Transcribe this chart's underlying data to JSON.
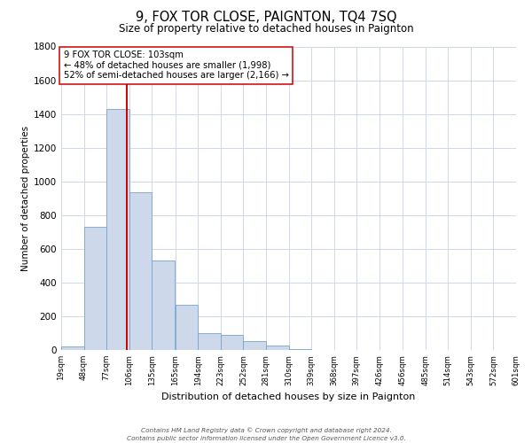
{
  "title": "9, FOX TOR CLOSE, PAIGNTON, TQ4 7SQ",
  "subtitle": "Size of property relative to detached houses in Paignton",
  "xlabel": "Distribution of detached houses by size in Paignton",
  "ylabel": "Number of detached properties",
  "bins": [
    19,
    48,
    77,
    106,
    135,
    165,
    194,
    223,
    252,
    281,
    310,
    339,
    368,
    397,
    426,
    456,
    485,
    514,
    543,
    572,
    601
  ],
  "counts": [
    20,
    730,
    1430,
    935,
    530,
    270,
    100,
    90,
    50,
    25,
    5,
    2,
    1,
    0,
    0,
    0,
    0,
    0,
    0,
    0
  ],
  "bar_facecolor": "#cdd9ea",
  "bar_edgecolor": "#7aa3c8",
  "property_value": 103,
  "vline_color": "#cc0000",
  "annotation_line1": "9 FOX TOR CLOSE: 103sqm",
  "annotation_line2": "← 48% of detached houses are smaller (1,998)",
  "annotation_line3": "52% of semi-detached houses are larger (2,166) →",
  "annotation_box_edgecolor": "#cc0000",
  "ylim": [
    0,
    1800
  ],
  "yticks": [
    0,
    200,
    400,
    600,
    800,
    1000,
    1200,
    1400,
    1600,
    1800
  ],
  "tick_labels": [
    "19sqm",
    "48sqm",
    "77sqm",
    "106sqm",
    "135sqm",
    "165sqm",
    "194sqm",
    "223sqm",
    "252sqm",
    "281sqm",
    "310sqm",
    "339sqm",
    "368sqm",
    "397sqm",
    "426sqm",
    "456sqm",
    "485sqm",
    "514sqm",
    "543sqm",
    "572sqm",
    "601sqm"
  ],
  "footer_line1": "Contains HM Land Registry data © Crown copyright and database right 2024.",
  "footer_line2": "Contains public sector information licensed under the Open Government Licence v3.0.",
  "bg_color": "#ffffff",
  "grid_color": "#d0d8e8",
  "title_fontsize": 10.5,
  "subtitle_fontsize": 8.5,
  "ylabel_fontsize": 7.5,
  "xlabel_fontsize": 8,
  "ytick_fontsize": 7.5,
  "xtick_fontsize": 6.2,
  "footer_fontsize": 5.2
}
